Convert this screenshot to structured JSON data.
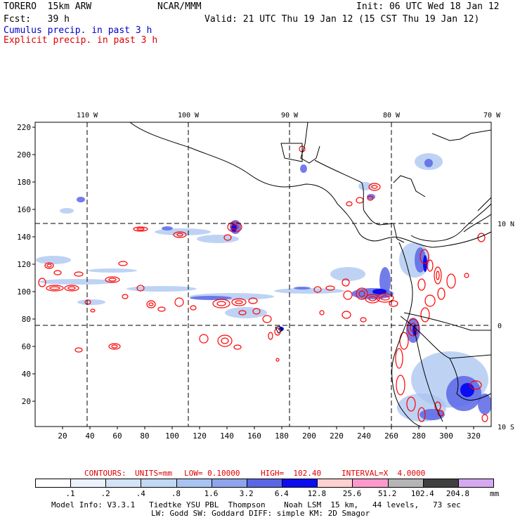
{
  "header": {
    "model": "TORERO  15km ARW",
    "center": "NCAR/MMM",
    "init": "Init: 06 UTC Wed 18 Jan 12",
    "fcst": "Fcst:   39 h",
    "valid": "Valid: 21 UTC Thu 19 Jan 12 (15 CST Thu 19 Jan 12)",
    "legend_cumulus": "Cumulus precip. in past 3 h",
    "legend_explicit": "Explicit precip. in past 3 h"
  },
  "map": {
    "top_axis": [
      "110 W",
      "100 W",
      "90 W",
      "80 W",
      "70 W"
    ],
    "right_axis": [
      "10 N",
      "0",
      "10 S"
    ],
    "left_axis": [
      "220",
      "200",
      "180",
      "160",
      "140",
      "120",
      "100",
      "80",
      "60",
      "40",
      "20"
    ],
    "bottom_axis": [
      "20",
      "40",
      "60",
      "80",
      "100",
      "120",
      "140",
      "160",
      "180",
      "200",
      "220",
      "240",
      "260",
      "280",
      "300",
      "320"
    ],
    "colors": {
      "cumulus": "#1010e0",
      "explicit": "#ff0000",
      "land": "#000000"
    }
  },
  "contour_info": {
    "label": "CONTOURS:",
    "units": "UNITS=mm",
    "low": "LOW= 0.10000",
    "high": "HIGH=  102.40",
    "interval": "INTERVAL=X  4.0000"
  },
  "colorbar": {
    "labels": [
      ".1",
      ".2",
      ".4",
      ".8",
      "1.6",
      "3.2",
      "6.4",
      "12.8",
      "25.6",
      "51.2",
      "102.4",
      "204.8"
    ],
    "unit": "mm",
    "colors": [
      "#ffffff",
      "#eaf2fb",
      "#d4e4f7",
      "#c2d8f5",
      "#a8c4f0",
      "#8fa4ec",
      "#5a66e6",
      "#0c0cf0",
      "#ffd0d0",
      "#ff99cc",
      "#b5b5b5",
      "#404040",
      "#d5a8f0"
    ]
  },
  "footer": {
    "line1": "Model Info: V3.3.1   Tiedtke YSU PBL  Thompson    Noah LSM  15 km,   44 levels,   73 sec",
    "line2": "LW: Godd SW: Goddard DIFF: simple KM: 2D Smagor"
  }
}
